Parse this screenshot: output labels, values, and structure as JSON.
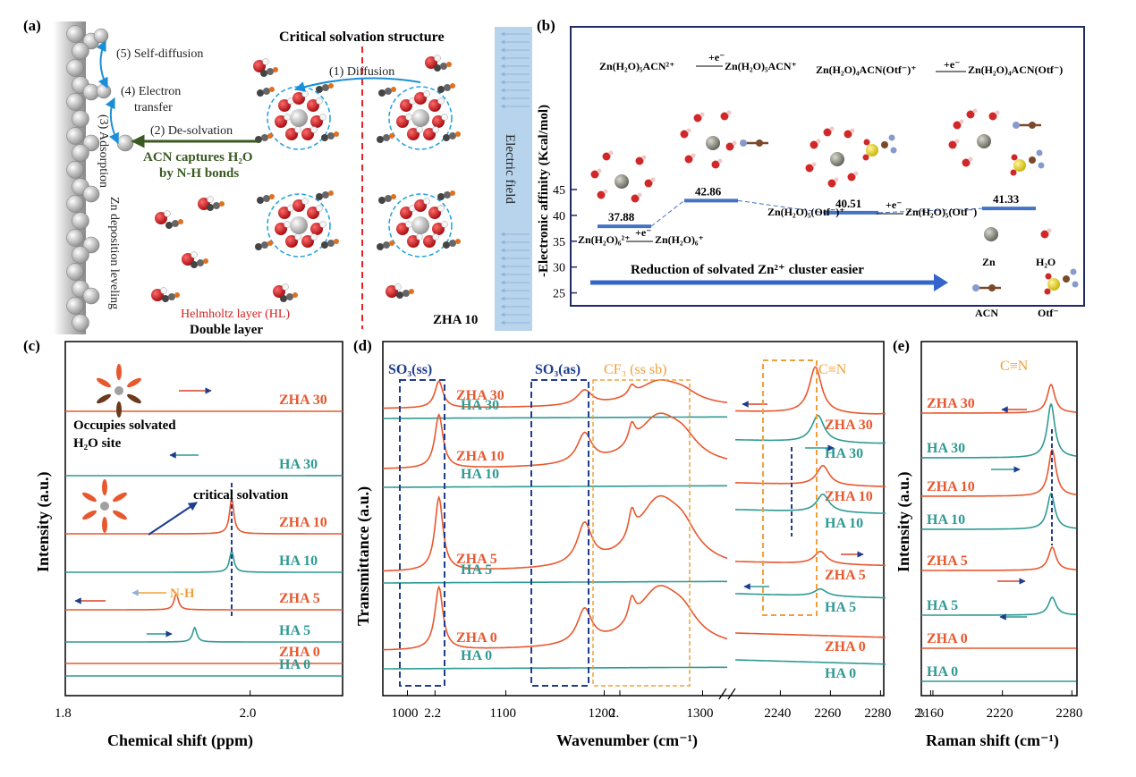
{
  "colors": {
    "zha": "#e8582f",
    "ha": "#2e9a93",
    "navy": "#1f3d8f",
    "orange": "#f0a03a",
    "redArrow": "#d9432c",
    "darkGreen": "#3a5a22",
    "blueArrow": "#1f5ad1",
    "zn": "#c8c8c8",
    "oxygen": "#d6232a",
    "field": "#b7d4ec"
  },
  "panel_a": {
    "letter": "(a)",
    "title": "Critical solvation structure",
    "steps": {
      "diffusion": "(1) Diffusion",
      "desolvation": "(2) De-solvation",
      "adsorption": "(3) Adsorption",
      "electron_1": "(4) Electron",
      "electron_2": "transfer",
      "selfdiff": "(5) Self-diffusion"
    },
    "acn_1": "ACN captures H₂O",
    "acn_2": "by N-H bonds",
    "zn_leveling": "Zn deposition leveling",
    "hl": "Helmholtz layer (HL)",
    "double": "Double layer",
    "zha10": "ZHA 10",
    "field": "Electric   field"
  },
  "panel_b": {
    "letter": "(b)",
    "ylabel": "-Electronic  affinity (Kcal/mol)",
    "yticks": [
      "45",
      "40",
      "35",
      "30",
      "25"
    ],
    "values": [
      "37.88",
      "42.86",
      "40.51",
      "41.33"
    ],
    "eq1_left": "Zn(H₂O)₅ACN²⁺",
    "eq1_right": "Zn(H₂O)₅ACN⁺",
    "eq2_left": "Zn(H₂O)₄ACN(Otf⁻)⁺",
    "eq2_right": "Zn(H₂O)₄ACN(Otf⁻)",
    "eq3_left": "Zn(H₂O)₅(Otf⁻)⁺",
    "eq3_right": "Zn(H₂O)₅(Otf⁻)",
    "eq4_left": "Zn(H₂O)₆²⁺",
    "eq4_right": "Zn(H₂O)₆⁺",
    "electron": "+e⁻",
    "reduction": "Reduction  of solvated Zn²⁺ cluster easier",
    "legend": [
      "Zn",
      "H₂O",
      "ACN",
      "Otf⁻"
    ]
  },
  "panel_c": {
    "letter": "(c)",
    "xlabel": "Chemical shift (ppm)",
    "ylabel": "Intensity (a.u.)",
    "xticks": [
      "1.8",
      "2.0",
      "2.2",
      "2."
    ],
    "labels": [
      "ZHA 30",
      "HA 30",
      "ZHA 10",
      "HA 10",
      "ZHA 5",
      "HA 5",
      "ZHA 0",
      "HA 0"
    ],
    "note_1": "Occupies solvated",
    "note_2": "H₂O site",
    "critical": "critical solvation",
    "nh": "N-H"
  },
  "panel_d": {
    "letter": "(d)",
    "xlabel": "Wavenumber (cm⁻¹)",
    "ylabel": "Transmittance (a.u.)",
    "xticks_left": [
      "1000",
      "1100",
      "1200",
      "1300"
    ],
    "xticks_right": [
      "2240",
      "2260",
      "2280",
      "2‹"
    ],
    "so3ss": "SO₃(ss)",
    "so3as": "SO₃(as)",
    "cf3": "CF₃ (ss sb)",
    "cn": "C≡N",
    "labels_left": [
      "ZHA 30",
      "HA 30",
      "ZHA 10",
      "HA 10",
      "ZHA 5",
      "HA 5",
      "ZHA 0",
      "HA 0"
    ],
    "labels_right": [
      "ZHA 30",
      "HA 30",
      "ZHA 10",
      "HA 10",
      "ZHA 5",
      "HA 5",
      "ZHA 0",
      "HA 0"
    ]
  },
  "panel_e": {
    "letter": "(e)",
    "xlabel": "Raman shift (cm⁻¹)",
    "ylabel": "Intensity (a.u.)",
    "xticks": [
      "2160",
      "2220",
      "2280"
    ],
    "cn": "C≡N",
    "labels": [
      "ZHA 30",
      "HA 30",
      "ZHA 10",
      "HA 10",
      "ZHA 5",
      "HA 5",
      "ZHA 0",
      "HA 0"
    ]
  }
}
